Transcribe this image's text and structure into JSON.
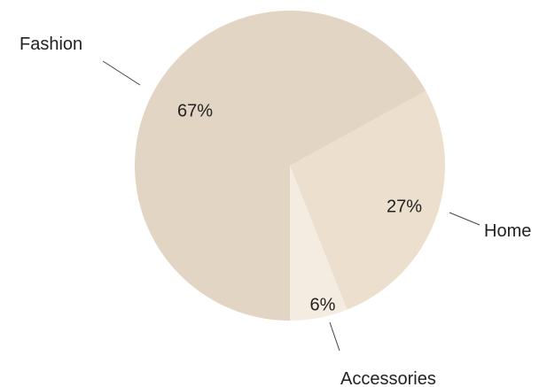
{
  "chart_data": {
    "type": "pie",
    "title": "",
    "slices": [
      {
        "label": "Fashion",
        "value": 67,
        "value_label": "67%",
        "color": "#e3d5c3"
      },
      {
        "label": "Home",
        "value": 27,
        "value_label": "27%",
        "color": "#ecdfcd"
      },
      {
        "label": "Accessories",
        "value": 6,
        "value_label": "6%",
        "color": "#f4ece1"
      }
    ],
    "start_angle": "12 o'clock, counter-clockwise order: Fashion, then clockwise from Fashion end: Accessories, Home",
    "legend": "none (labels with leader lines outside slices)"
  }
}
